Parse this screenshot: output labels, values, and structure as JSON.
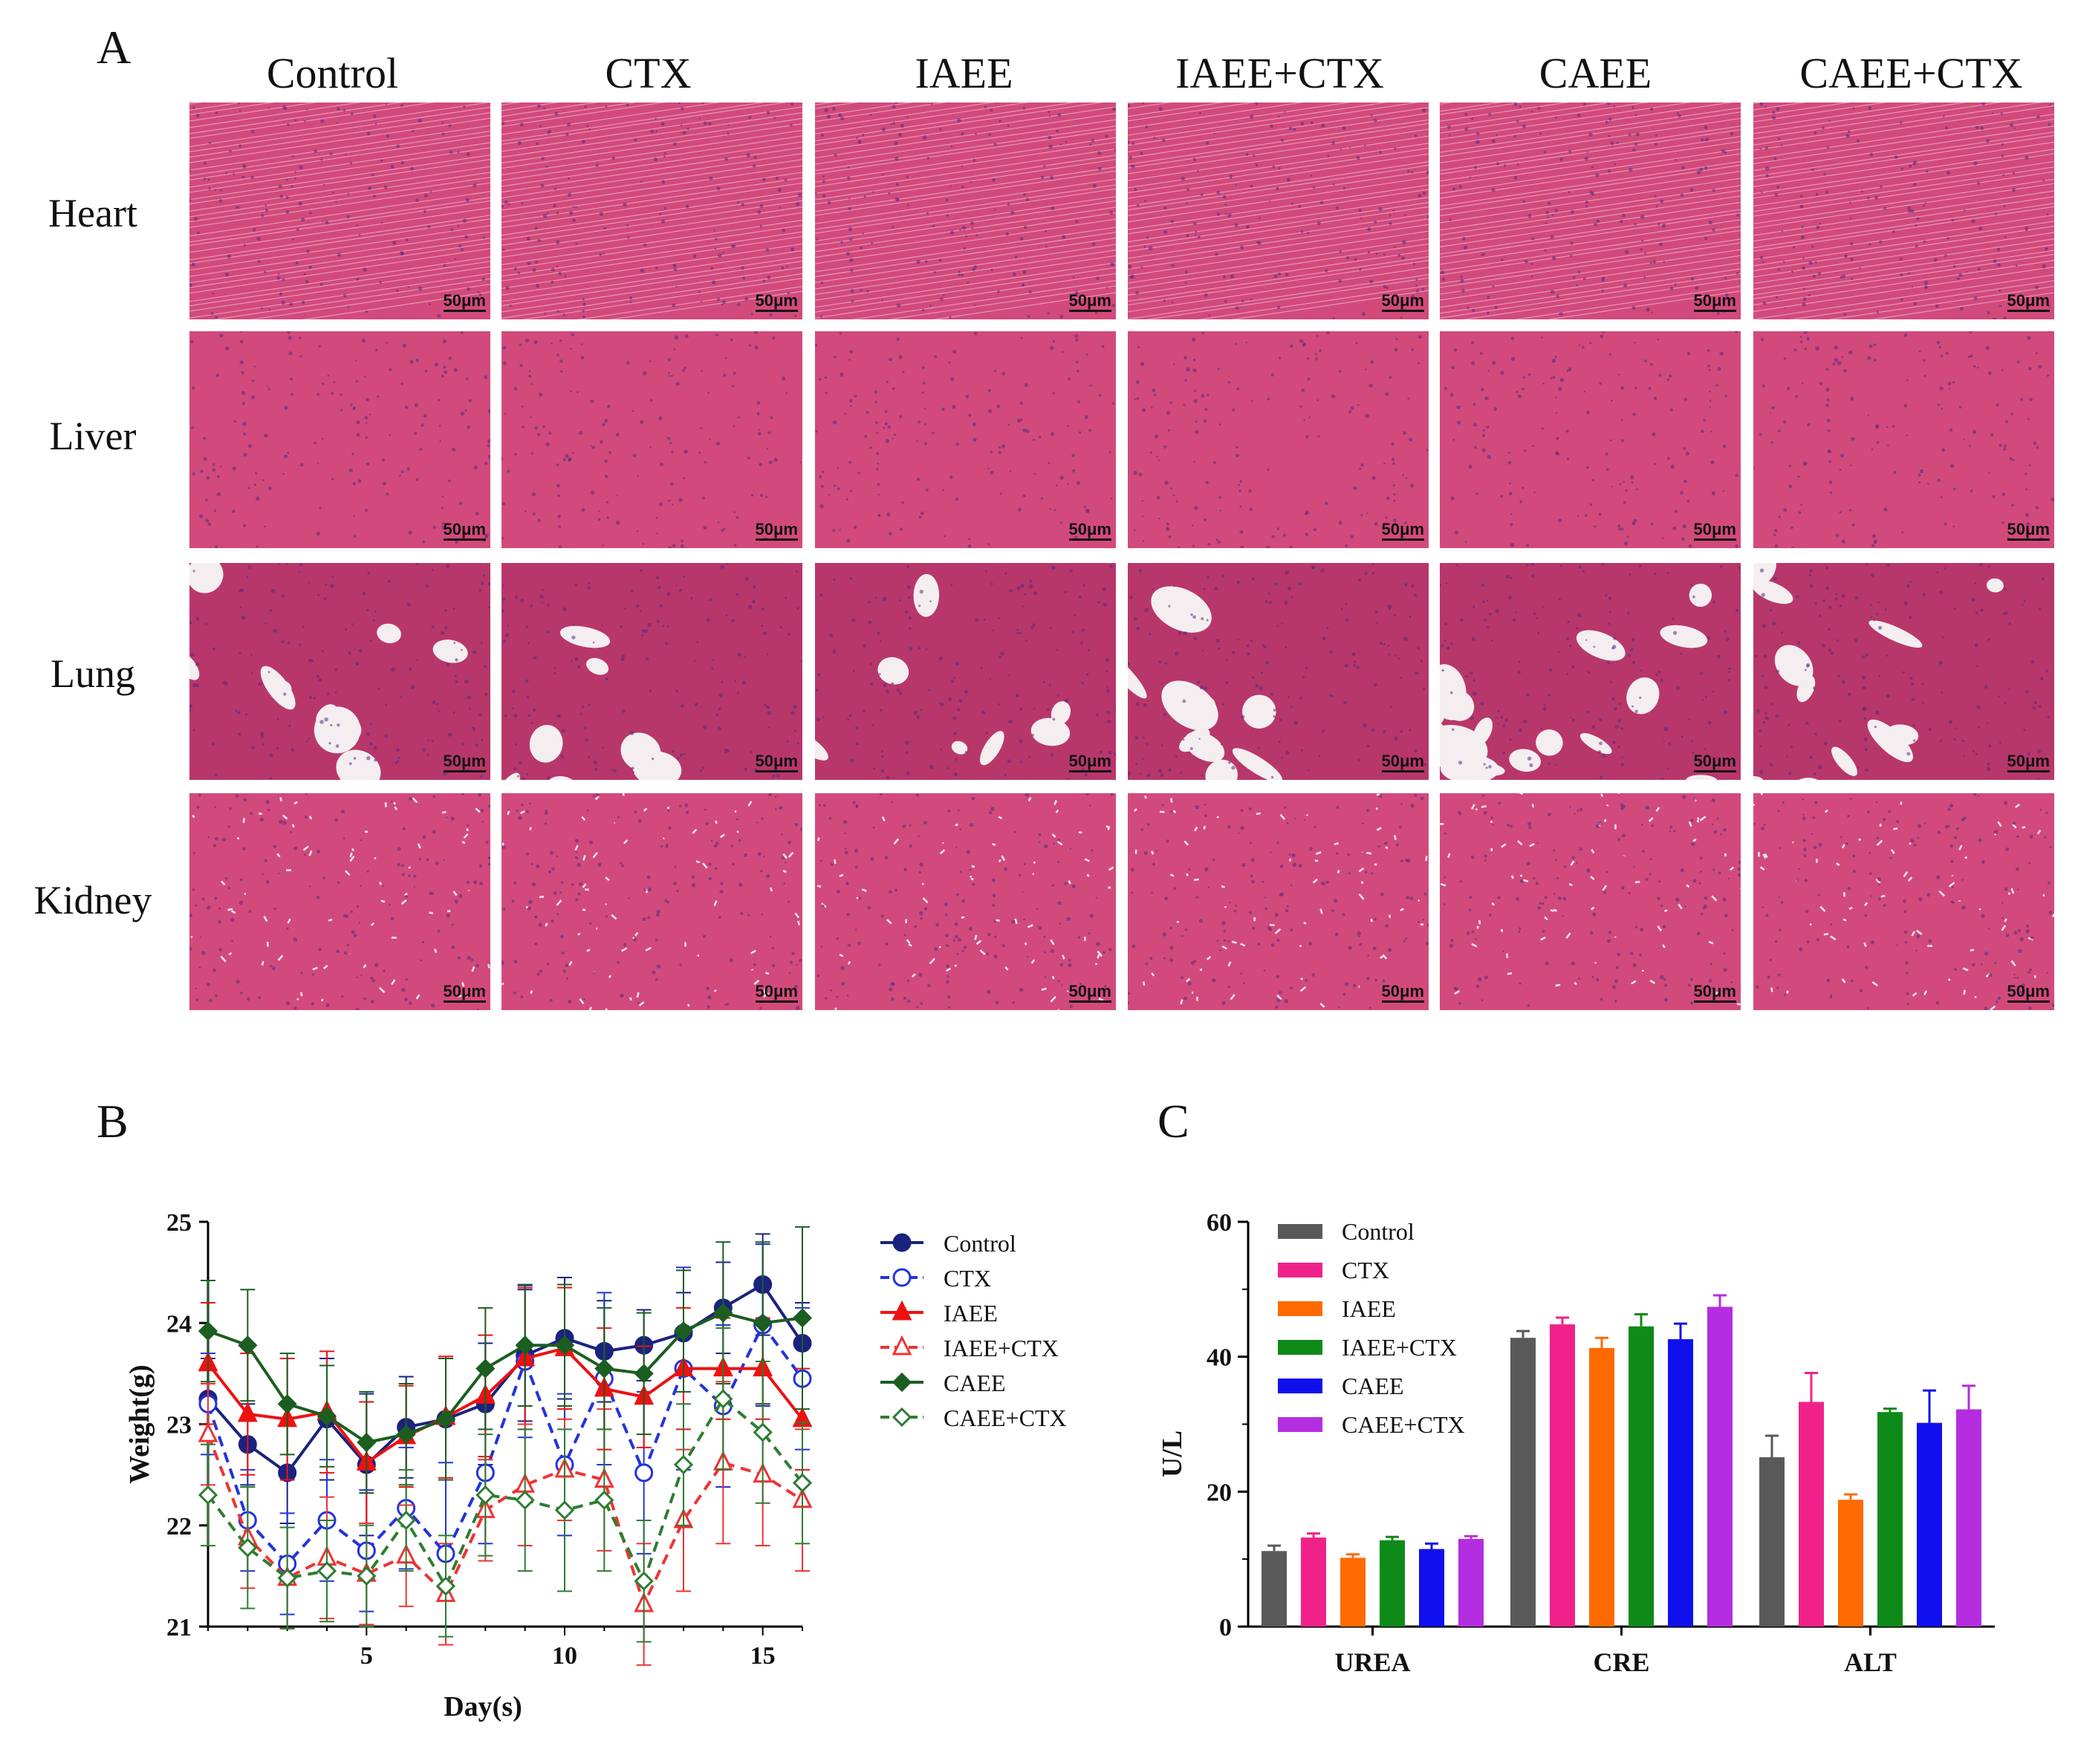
{
  "panel_a": {
    "letter": "A",
    "columns": [
      "Control",
      "CTX",
      "IAEE",
      "IAEE+CTX",
      "CAEE",
      "CAEE+CTX"
    ],
    "rows": [
      "Heart",
      "Liver",
      "Lung",
      "Kidney"
    ],
    "scale_bar": "50μm",
    "colors": {
      "tissue": "#d24a7c",
      "tissue_dark": "#b8376a",
      "nuclei": "#5a2a7a",
      "space": "#f4eef0"
    }
  },
  "chart_data": [
    {
      "panel": "B",
      "type": "line",
      "xlabel": "Day(s)",
      "ylabel": "Weight(g)",
      "xlim": [
        1,
        16
      ],
      "ylim": [
        21,
        25
      ],
      "xticks": [
        5,
        10,
        15
      ],
      "yticks": [
        21,
        22,
        23,
        24,
        25
      ],
      "x": [
        1,
        2,
        3,
        4,
        5,
        6,
        7,
        8,
        9,
        10,
        11,
        12,
        13,
        14,
        15,
        16
      ],
      "series": [
        {
          "name": "Control",
          "color": "#1a237e",
          "dash": false,
          "marker": "circle-filled",
          "values": [
            23.25,
            22.8,
            22.52,
            23.05,
            22.6,
            22.97,
            23.05,
            23.2,
            23.68,
            23.85,
            23.72,
            23.78,
            23.9,
            24.15,
            24.38,
            23.8
          ],
          "errors": [
            0.4,
            0.4,
            0.5,
            0.6,
            0.7,
            0.5,
            0.6,
            0.6,
            0.65,
            0.6,
            0.5,
            0.35,
            0.4,
            0.45,
            0.5,
            0.4
          ]
        },
        {
          "name": "CTX",
          "color": "#2233dd",
          "dash": true,
          "marker": "circle-open",
          "values": [
            23.2,
            22.05,
            21.62,
            22.05,
            21.75,
            22.17,
            21.72,
            22.52,
            23.62,
            22.6,
            23.45,
            22.52,
            23.55,
            23.18,
            23.98,
            23.45
          ],
          "errors": [
            0.5,
            0.5,
            0.5,
            0.6,
            0.6,
            0.6,
            0.9,
            0.7,
            0.75,
            0.7,
            0.85,
            0.8,
            1.0,
            0.8,
            0.8,
            0.7
          ]
        },
        {
          "name": "IAEE",
          "color": "#ee1111",
          "dash": false,
          "marker": "triangle-filled",
          "values": [
            23.6,
            23.1,
            23.05,
            23.12,
            22.62,
            22.88,
            23.07,
            23.28,
            23.65,
            23.75,
            23.35,
            23.27,
            23.55,
            23.55,
            23.55,
            23.05
          ],
          "errors": [
            0.6,
            0.6,
            0.6,
            0.6,
            0.6,
            0.5,
            0.6,
            0.6,
            0.7,
            0.6,
            0.6,
            0.5,
            0.6,
            0.5,
            0.5,
            0.5
          ]
        },
        {
          "name": "IAEE+CTX",
          "color": "#ee3333",
          "dash": true,
          "marker": "triangle-open",
          "values": [
            22.9,
            21.88,
            21.48,
            21.68,
            21.52,
            21.7,
            21.32,
            22.15,
            22.4,
            22.55,
            22.45,
            21.22,
            22.05,
            22.62,
            22.5,
            22.25
          ],
          "errors": [
            0.5,
            0.5,
            0.5,
            0.6,
            0.5,
            0.5,
            0.5,
            0.5,
            0.6,
            0.5,
            0.7,
            0.6,
            0.7,
            0.8,
            0.7,
            0.7
          ]
        },
        {
          "name": "CAEE",
          "color": "#1b5e20",
          "dash": false,
          "marker": "diamond-filled",
          "values": [
            23.92,
            23.78,
            23.2,
            23.08,
            22.82,
            22.9,
            23.05,
            23.55,
            23.78,
            23.78,
            23.55,
            23.5,
            23.92,
            24.1,
            24.0,
            24.05
          ],
          "errors": [
            0.5,
            0.55,
            0.5,
            0.5,
            0.5,
            0.5,
            0.6,
            0.6,
            0.6,
            0.6,
            0.6,
            0.6,
            0.6,
            0.7,
            0.8,
            0.9
          ]
        },
        {
          "name": "CAEE+CTX",
          "color": "#2e7d32",
          "dash": true,
          "marker": "diamond-open",
          "values": [
            22.3,
            21.78,
            21.48,
            21.55,
            21.5,
            22.05,
            21.4,
            22.3,
            22.25,
            22.15,
            22.25,
            21.45,
            22.6,
            23.25,
            22.92,
            22.42
          ],
          "errors": [
            0.5,
            0.6,
            0.5,
            0.5,
            0.5,
            0.5,
            0.5,
            0.6,
            0.7,
            0.8,
            0.7,
            0.6,
            0.6,
            0.7,
            0.7,
            0.6
          ]
        }
      ]
    },
    {
      "panel": "C",
      "type": "bar",
      "xlabel": "",
      "ylabel": "U/L",
      "ylim": [
        0,
        60
      ],
      "yticks": [
        0,
        20,
        40,
        60
      ],
      "categories": [
        "UREA",
        "CRE",
        "ALT"
      ],
      "series": [
        {
          "name": "Control",
          "color": "#595959",
          "values": [
            11.2,
            42.8,
            25.1
          ],
          "errors": [
            0.8,
            1.0,
            3.2
          ]
        },
        {
          "name": "CTX",
          "color": "#f0228a",
          "values": [
            13.2,
            44.8,
            33.3
          ],
          "errors": [
            0.6,
            1.0,
            4.3
          ]
        },
        {
          "name": "IAEE",
          "color": "#ff6a00",
          "values": [
            10.2,
            41.3,
            18.8
          ],
          "errors": [
            0.5,
            1.5,
            0.8
          ]
        },
        {
          "name": "IAEE+CTX",
          "color": "#0d8a17",
          "values": [
            12.8,
            44.5,
            31.8
          ],
          "errors": [
            0.5,
            1.8,
            0.5
          ]
        },
        {
          "name": "CAEE",
          "color": "#1010ee",
          "values": [
            11.5,
            42.6,
            30.2
          ],
          "errors": [
            0.8,
            2.3,
            4.8
          ]
        },
        {
          "name": "CAEE+CTX",
          "color": "#b52de0",
          "values": [
            13.0,
            47.4,
            32.2
          ],
          "errors": [
            0.4,
            1.7,
            3.5
          ]
        }
      ]
    }
  ]
}
